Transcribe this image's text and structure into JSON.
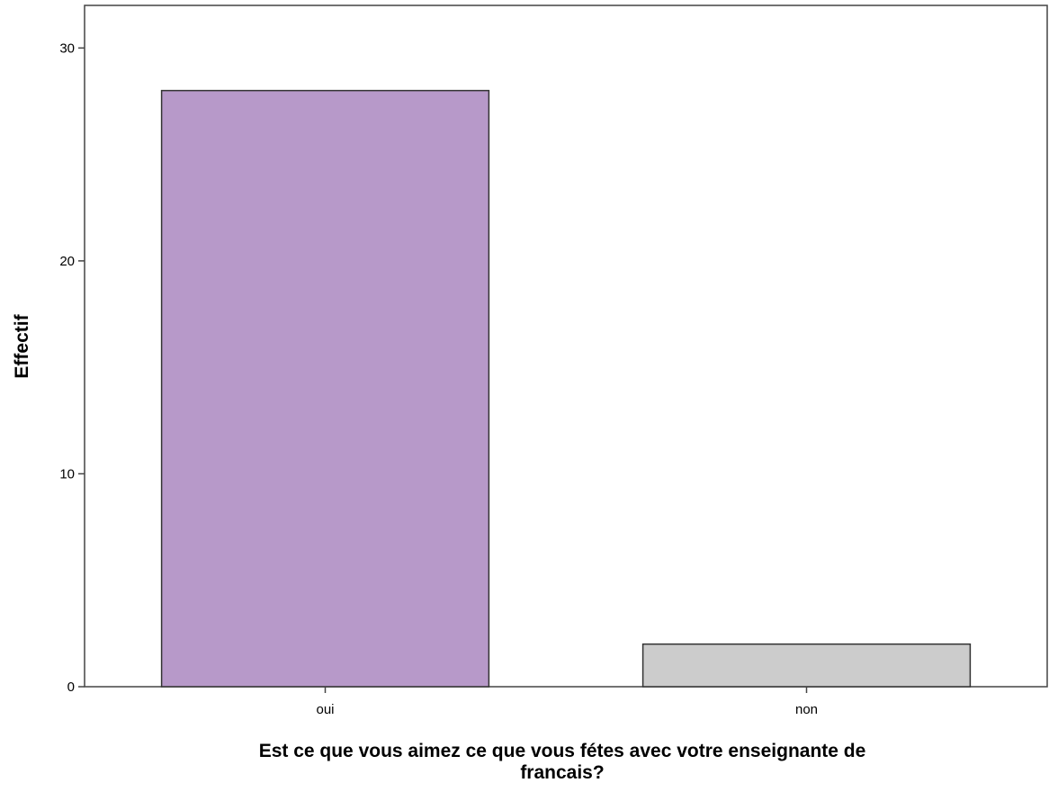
{
  "chart_data": {
    "type": "bar",
    "title": "",
    "xlabel": "Est ce que vous aimez ce que vous fétes avec votre enseignante de francais?",
    "ylabel": "Effectif",
    "categories": [
      "oui",
      "non"
    ],
    "values": [
      28,
      2
    ],
    "colors": [
      "#b799c9",
      "#cccccc"
    ],
    "bar_border_color": "#333333",
    "ylim": [
      0,
      32
    ],
    "yticks": [
      0,
      10,
      20,
      30
    ],
    "grid": false,
    "legend": "none"
  }
}
